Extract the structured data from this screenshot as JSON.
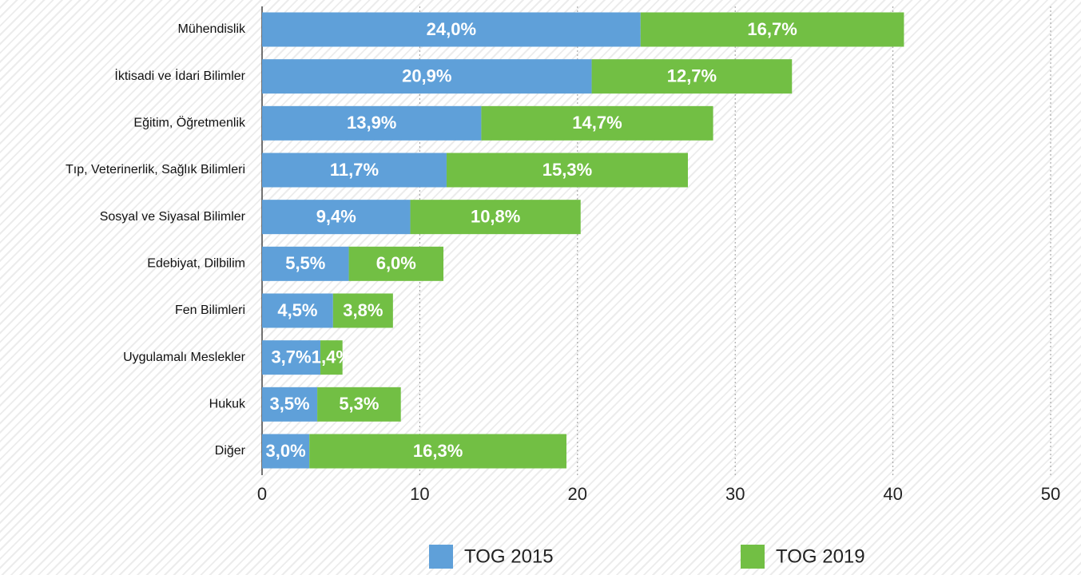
{
  "chart_data": {
    "type": "stacked-barh",
    "categories": [
      "Mühendislik",
      "İktisadi ve İdari Bilimler",
      "Eğitim, Öğretmenlik",
      "Tıp, Veterinerlik, Sağlık Bilimleri",
      "Sosyal ve Siyasal Bilimler",
      "Edebiyat, Dilbilim",
      "Fen Bilimleri",
      "Uygulamalı Meslekler",
      "Hukuk",
      "Diğer"
    ],
    "series": [
      {
        "name": "TOG 2015",
        "color": "#5fa0d9",
        "values": [
          24.0,
          20.9,
          13.9,
          11.7,
          9.4,
          5.5,
          4.5,
          3.7,
          3.5,
          3.0
        ],
        "value_labels": [
          "24,0%",
          "20,9%",
          "13,9%",
          "11,7%",
          "9,4%",
          "5,5%",
          "4,5%",
          "3,7%",
          "3,5%",
          "3,0%"
        ]
      },
      {
        "name": "TOG 2019",
        "color": "#72bf44",
        "values": [
          16.7,
          12.7,
          14.7,
          15.3,
          10.8,
          6.0,
          3.8,
          1.4,
          5.3,
          16.3
        ],
        "value_labels": [
          "16,7%",
          "12,7%",
          "14,7%",
          "15,3%",
          "10,8%",
          "6,0%",
          "3,8%",
          "1,4%",
          "5,3%",
          "16,3%"
        ]
      }
    ],
    "xlim": [
      0,
      50
    ],
    "xticks": [
      0,
      10,
      20,
      30,
      40,
      50
    ],
    "grid": true
  }
}
